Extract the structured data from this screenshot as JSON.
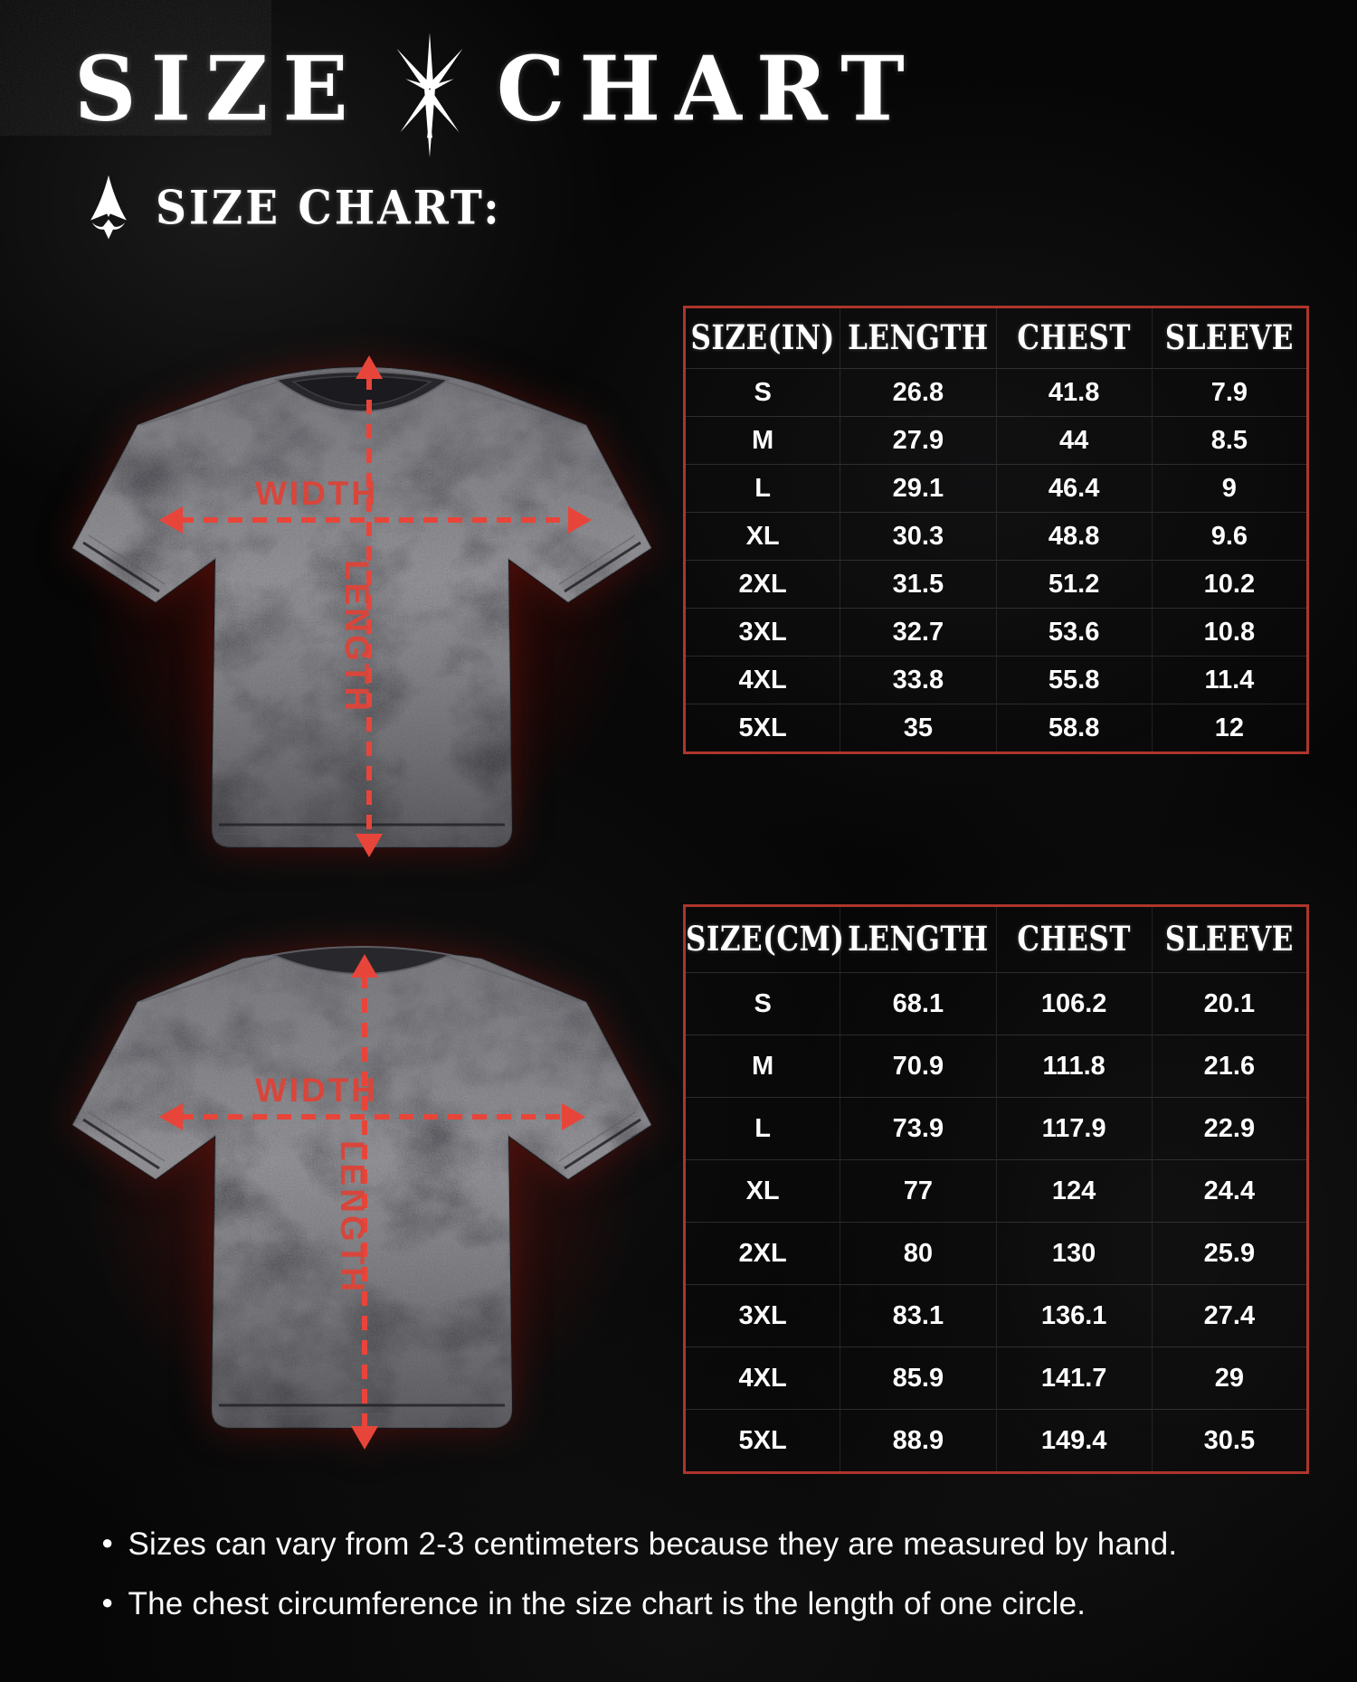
{
  "header": {
    "title_left": "SIZE",
    "title_right": "CHART",
    "subtitle": "SIZE CHART:"
  },
  "labels": {
    "width": "WIDTH",
    "length": "LENGTH"
  },
  "notes": [
    "Sizes can vary from 2-3 centimeters because they are measured by hand.",
    "The chest circumference in the size chart is the length of one circle."
  ],
  "colors": {
    "accent_red": "#e8453a",
    "label_red": "#d8463b",
    "table_border": "#ad352b",
    "text": "#ffffff"
  },
  "icons": {
    "title_divider": "thorn-star",
    "subtitle_marker": "spearhead-arrow"
  },
  "chart_data": [
    {
      "type": "table",
      "headers": [
        "SIZE(IN)",
        "LENGTH",
        "CHEST",
        "SLEEVE"
      ],
      "rows": [
        [
          "S",
          "26.8",
          "41.8",
          "7.9"
        ],
        [
          "M",
          "27.9",
          "44",
          "8.5"
        ],
        [
          "L",
          "29.1",
          "46.4",
          "9"
        ],
        [
          "XL",
          "30.3",
          "48.8",
          "9.6"
        ],
        [
          "2XL",
          "31.5",
          "51.2",
          "10.2"
        ],
        [
          "3XL",
          "32.7",
          "53.6",
          "10.8"
        ],
        [
          "4XL",
          "33.8",
          "55.8",
          "11.4"
        ],
        [
          "5XL",
          "35",
          "58.8",
          "12"
        ]
      ]
    },
    {
      "type": "table",
      "headers": [
        "SIZE(CM)",
        "LENGTH",
        "CHEST",
        "SLEEVE"
      ],
      "rows": [
        [
          "S",
          "68.1",
          "106.2",
          "20.1"
        ],
        [
          "M",
          "70.9",
          "111.8",
          "21.6"
        ],
        [
          "L",
          "73.9",
          "117.9",
          "22.9"
        ],
        [
          "XL",
          "77",
          "124",
          "24.4"
        ],
        [
          "2XL",
          "80",
          "130",
          "25.9"
        ],
        [
          "3XL",
          "83.1",
          "136.1",
          "27.4"
        ],
        [
          "4XL",
          "85.9",
          "141.7",
          "29"
        ],
        [
          "5XL",
          "88.9",
          "149.4",
          "30.5"
        ]
      ]
    }
  ]
}
